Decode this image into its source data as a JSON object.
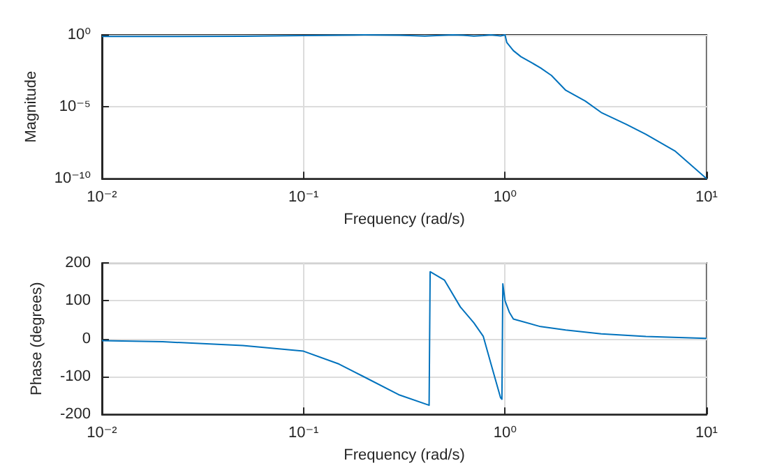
{
  "chart_data": [
    {
      "type": "line",
      "xlabel": "Frequency (rad/s)",
      "ylabel": "Magnitude",
      "log": "xy",
      "grid": true,
      "xlim": [
        0.01,
        10
      ],
      "xticks": [
        {
          "value": 0.01,
          "label": "10⁻²"
        },
        {
          "value": 0.1,
          "label": "10⁻¹"
        },
        {
          "value": 1,
          "label": "10⁰"
        },
        {
          "value": 10,
          "label": "10¹"
        }
      ],
      "ylim": [
        1e-10,
        1
      ],
      "yticks": [
        {
          "value": 1e-10,
          "label": "10⁻¹⁰"
        },
        {
          "value": 1e-05,
          "label": "10⁻⁵"
        },
        {
          "value": 1,
          "label": "10⁰"
        }
      ],
      "series": [
        {
          "color": "#0072bd",
          "x": [
            0.01,
            0.02,
            0.05,
            0.1,
            0.2,
            0.3,
            0.4,
            0.5,
            0.55,
            0.62,
            0.7,
            0.78,
            0.85,
            0.95,
            1.0,
            1.02,
            1.1,
            1.2,
            1.35,
            1.5,
            1.7,
            2,
            2.5,
            3,
            4,
            5,
            7,
            10
          ],
          "values": [
            0.77,
            0.78,
            0.8,
            0.9,
            1.0,
            0.95,
            0.82,
            0.95,
            1.0,
            0.95,
            0.82,
            0.9,
            1.0,
            0.85,
            1.0,
            0.3,
            0.08,
            0.03,
            0.012,
            0.005,
            0.0015,
            0.00014,
            2.5e-05,
            4e-06,
            6e-07,
            1.2e-07,
            8e-09,
            1e-10
          ]
        }
      ]
    },
    {
      "type": "line",
      "xlabel": "Frequency (rad/s)",
      "ylabel": "Phase (degrees)",
      "log": "x",
      "grid": true,
      "xlim": [
        0.01,
        10
      ],
      "xticks": [
        {
          "value": 0.01,
          "label": "10⁻²"
        },
        {
          "value": 0.1,
          "label": "10⁻¹"
        },
        {
          "value": 1,
          "label": "10⁰"
        },
        {
          "value": 10,
          "label": "10¹"
        }
      ],
      "ylim": [
        -200,
        200
      ],
      "yticks": [
        -200,
        -100,
        0,
        100,
        200
      ],
      "series": [
        {
          "color": "#0072bd",
          "x": [
            0.01,
            0.02,
            0.05,
            0.1,
            0.15,
            0.2,
            0.3,
            0.42,
            0.425,
            0.5,
            0.6,
            0.7,
            0.78,
            0.85,
            0.95,
            0.965,
            0.975,
            1.0,
            1.05,
            1.1,
            1.5,
            2,
            3,
            5,
            10
          ],
          "values": [
            -5,
            -8,
            -18,
            -33,
            -67,
            -101,
            -149,
            -176,
            177,
            155,
            84,
            42,
            6,
            -65,
            -156,
            -160,
            145,
            100,
            70,
            52,
            32,
            23,
            13,
            6,
            1
          ]
        }
      ]
    }
  ]
}
